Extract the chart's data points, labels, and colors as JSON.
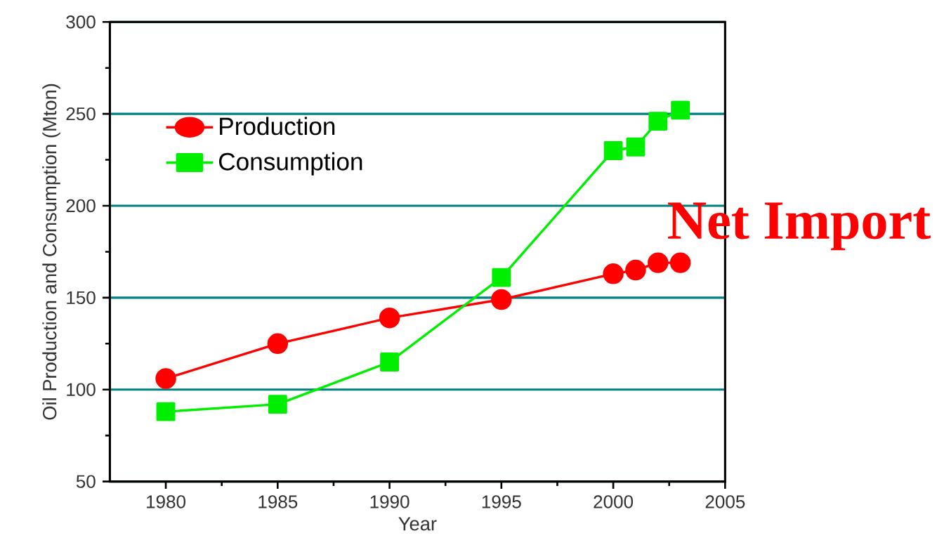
{
  "chart_data": {
    "type": "line",
    "xlabel": "Year",
    "ylabel": "Oil Production and Consumption (Mton)",
    "x": [
      1980,
      1985,
      1990,
      1995,
      2000,
      2001,
      2002,
      2003
    ],
    "series": [
      {
        "name": "Production",
        "color": "#ff0000",
        "marker": "circle",
        "values": [
          106,
          125,
          139,
          149,
          163,
          165,
          169,
          169
        ]
      },
      {
        "name": "Consumption",
        "color": "#00ee00",
        "marker": "square",
        "values": [
          88,
          92,
          115,
          161,
          230,
          232,
          246,
          252
        ]
      }
    ],
    "xlim": [
      1977.5,
      2005
    ],
    "xticks": [
      1980,
      1985,
      1990,
      1995,
      2000,
      2005
    ],
    "ylim": [
      50,
      300
    ],
    "yticks": [
      50,
      100,
      150,
      200,
      250,
      300
    ],
    "grid": "y",
    "legend": "top left",
    "line_style": "solid",
    "annotations": [
      "Net Import"
    ]
  }
}
